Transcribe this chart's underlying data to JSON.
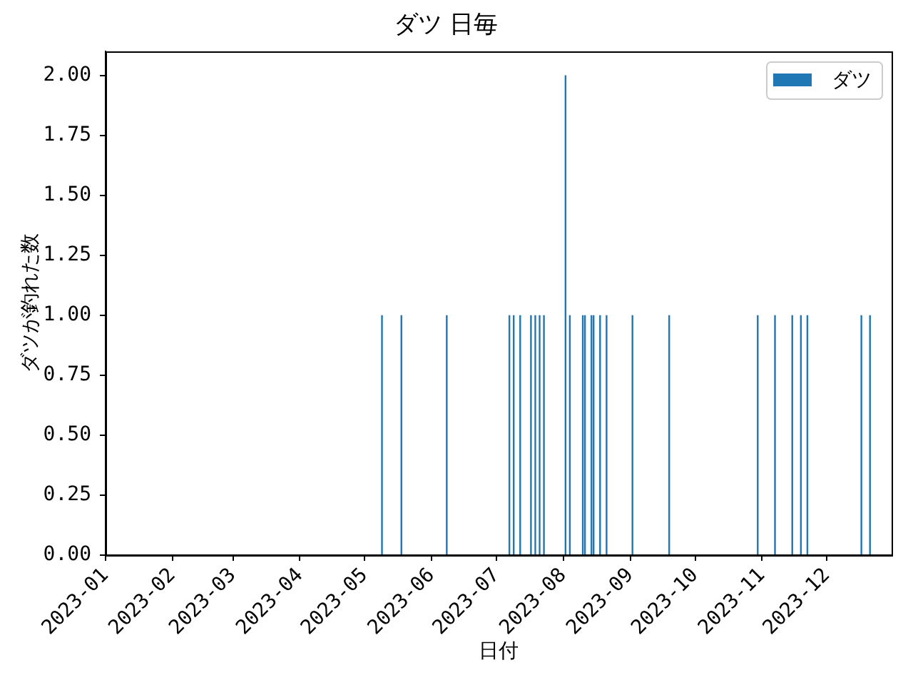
{
  "chart_data": {
    "type": "bar",
    "title": "ダツ 日毎",
    "xlabel": "日付",
    "ylabel": "ダツが釣れた数",
    "x": [
      "2023-05-09",
      "2023-05-18",
      "2023-06-08",
      "2023-07-07",
      "2023-07-09",
      "2023-07-12",
      "2023-07-17",
      "2023-07-19",
      "2023-07-21",
      "2023-07-23",
      "2023-08-02",
      "2023-08-04",
      "2023-08-10",
      "2023-08-11",
      "2023-08-14",
      "2023-08-15",
      "2023-08-18",
      "2023-08-21",
      "2023-09-02",
      "2023-09-19",
      "2023-10-30",
      "2023-11-07",
      "2023-11-15",
      "2023-11-19",
      "2023-11-22",
      "2023-12-17",
      "2023-12-21"
    ],
    "series": [
      {
        "name": "ダツ",
        "color": "#1f77b4",
        "values": [
          1,
          1,
          1,
          1,
          1,
          1,
          1,
          1,
          1,
          1,
          2,
          1,
          1,
          1,
          1,
          1,
          1,
          1,
          1,
          1,
          1,
          1,
          1,
          1,
          1,
          1,
          1
        ]
      }
    ],
    "xlim": [
      "2023-01-01",
      "2023-12-31"
    ],
    "xticks": [
      "2023-01",
      "2023-02",
      "2023-03",
      "2023-04",
      "2023-05",
      "2023-06",
      "2023-07",
      "2023-08",
      "2023-09",
      "2023-10",
      "2023-11",
      "2023-12"
    ],
    "ylim": [
      0,
      2.1
    ],
    "yticks": [
      {
        "value": 0,
        "label": "0.00"
      },
      {
        "value": 0.25,
        "label": "0.25"
      },
      {
        "value": 0.5,
        "label": "0.50"
      },
      {
        "value": 0.75,
        "label": "0.75"
      },
      {
        "value": 1,
        "label": "1.00"
      },
      {
        "value": 1.25,
        "label": "1.25"
      },
      {
        "value": 1.5,
        "label": "1.50"
      },
      {
        "value": 1.75,
        "label": "1.75"
      },
      {
        "value": 2,
        "label": "2.00"
      }
    ],
    "legend": "top right"
  }
}
